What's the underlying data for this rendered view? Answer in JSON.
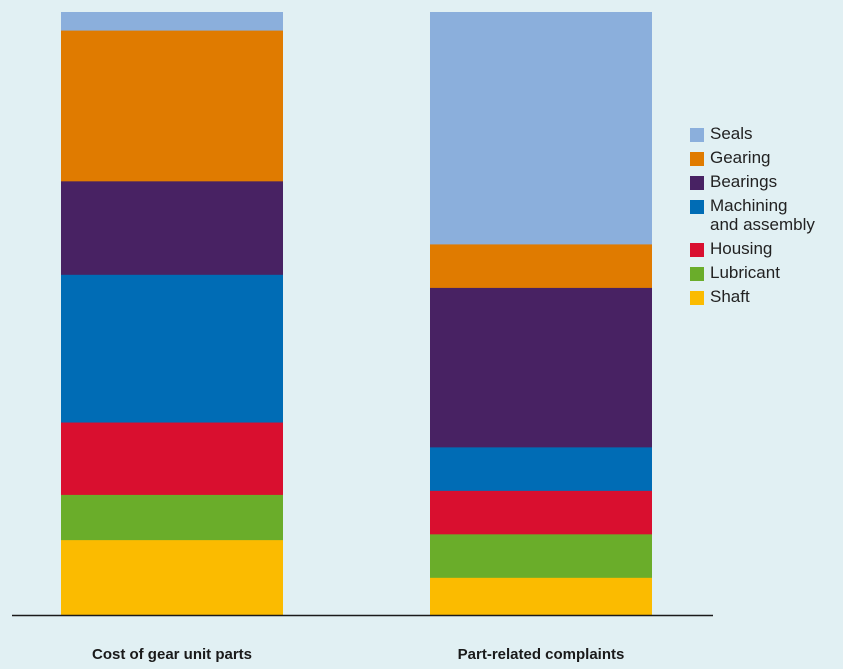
{
  "chart_data": {
    "type": "bar",
    "stacked": true,
    "normalized": true,
    "categories": [
      "Cost of gear unit parts",
      "Part-related complaints"
    ],
    "series": [
      {
        "name": "Shaft",
        "color": "#fbbb00",
        "values": [
          12.5,
          6.5
        ]
      },
      {
        "name": "Lubricant",
        "color": "#6aad2a",
        "values": [
          7.5,
          7.5
        ]
      },
      {
        "name": "Housing",
        "color": "#d90f2f",
        "values": [
          12.0,
          7.5
        ]
      },
      {
        "name": "Machining\nand assembly",
        "color": "#006cb5",
        "values": [
          24.5,
          7.5
        ]
      },
      {
        "name": "Bearings",
        "color": "#482263",
        "values": [
          15.5,
          27.5
        ]
      },
      {
        "name": "Gearing",
        "color": "#e07b00",
        "values": [
          25.0,
          7.5
        ]
      },
      {
        "name": "Seals",
        "color": "#8bafdc",
        "values": [
          3.0,
          40.0
        ]
      }
    ],
    "legend": {
      "position": "right",
      "entries": [
        "Seals",
        "Gearing",
        "Bearings",
        "Machining\nand assembly",
        "Housing",
        "Lubricant",
        "Shaft"
      ]
    },
    "ylim": [
      0,
      100
    ],
    "grid": false,
    "xlabel": "",
    "ylabel": "",
    "title": ""
  }
}
